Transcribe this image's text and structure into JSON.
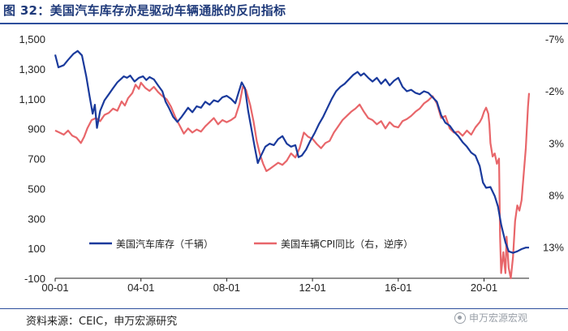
{
  "title": "图 32：美国汽车库存亦是驱动车辆通胀的反向指标",
  "source": "资料来源：CEIC，申万宏源研究",
  "watermark": "申万宏源宏观",
  "colors": {
    "inventory": "#1a3a9c",
    "cpi": "#e8666a",
    "title": "#1f3a7a"
  },
  "chart_data": {
    "type": "line",
    "title": "",
    "x_tick_labels": [
      "00-01",
      "04-01",
      "08-01",
      "12-01",
      "16-01",
      "20-01"
    ],
    "x_ticks": [
      2000.0,
      2004.0,
      2008.0,
      2012.0,
      2016.0,
      2020.0
    ],
    "xlim": [
      2000.0,
      2022.1
    ],
    "y_left": {
      "lim": [
        -100,
        1500
      ],
      "ticks": [
        -100,
        100,
        300,
        500,
        700,
        900,
        1100,
        1300,
        1500
      ],
      "tick_labels": [
        "-100",
        "100",
        "300",
        "500",
        "700",
        "900",
        "1,100",
        "1,300",
        "1,500"
      ]
    },
    "y_right": {
      "lim": [
        -7,
        16
      ],
      "inverted": true,
      "ticks": [
        -7,
        -2,
        3,
        8,
        13
      ],
      "tick_labels": [
        "-7%",
        "-2%",
        "3%",
        "8%",
        "13%"
      ]
    },
    "legend_position": "bottom-left",
    "series": [
      {
        "name": "美国汽车库存（千辆）",
        "axis": "left",
        "points": [
          [
            2000.0,
            1395
          ],
          [
            2000.15,
            1310
          ],
          [
            2000.4,
            1325
          ],
          [
            2000.6,
            1360
          ],
          [
            2000.85,
            1400
          ],
          [
            2001.05,
            1420
          ],
          [
            2001.25,
            1390
          ],
          [
            2001.45,
            1250
          ],
          [
            2001.6,
            1120
          ],
          [
            2001.75,
            1000
          ],
          [
            2001.85,
            1060
          ],
          [
            2001.95,
            905
          ],
          [
            2002.1,
            1020
          ],
          [
            2002.3,
            1090
          ],
          [
            2002.5,
            1130
          ],
          [
            2002.7,
            1170
          ],
          [
            2002.9,
            1210
          ],
          [
            2003.05,
            1230
          ],
          [
            2003.2,
            1250
          ],
          [
            2003.35,
            1240
          ],
          [
            2003.5,
            1255
          ],
          [
            2003.7,
            1215
          ],
          [
            2003.9,
            1240
          ],
          [
            2004.1,
            1250
          ],
          [
            2004.25,
            1225
          ],
          [
            2004.4,
            1245
          ],
          [
            2004.6,
            1230
          ],
          [
            2004.8,
            1190
          ],
          [
            2005.0,
            1150
          ],
          [
            2005.15,
            1080
          ],
          [
            2005.3,
            1040
          ],
          [
            2005.5,
            980
          ],
          [
            2005.7,
            945
          ],
          [
            2005.9,
            980
          ],
          [
            2006.05,
            1010
          ],
          [
            2006.2,
            1040
          ],
          [
            2006.4,
            1010
          ],
          [
            2006.6,
            1050
          ],
          [
            2006.8,
            1040
          ],
          [
            2007.0,
            1080
          ],
          [
            2007.2,
            1060
          ],
          [
            2007.4,
            1090
          ],
          [
            2007.6,
            1080
          ],
          [
            2007.8,
            1110
          ],
          [
            2008.0,
            1120
          ],
          [
            2008.2,
            1100
          ],
          [
            2008.4,
            1070
          ],
          [
            2008.55,
            1140
          ],
          [
            2008.7,
            1210
          ],
          [
            2008.85,
            1170
          ],
          [
            2009.0,
            1020
          ],
          [
            2009.15,
            900
          ],
          [
            2009.3,
            780
          ],
          [
            2009.45,
            670
          ],
          [
            2009.6,
            720
          ],
          [
            2009.8,
            780
          ],
          [
            2010.0,
            800
          ],
          [
            2010.2,
            790
          ],
          [
            2010.4,
            830
          ],
          [
            2010.6,
            850
          ],
          [
            2010.8,
            800
          ],
          [
            2011.0,
            780
          ],
          [
            2011.2,
            790
          ],
          [
            2011.35,
            710
          ],
          [
            2011.5,
            720
          ],
          [
            2011.7,
            760
          ],
          [
            2011.9,
            820
          ],
          [
            2012.1,
            870
          ],
          [
            2012.3,
            930
          ],
          [
            2012.5,
            980
          ],
          [
            2012.7,
            1040
          ],
          [
            2012.9,
            1100
          ],
          [
            2013.1,
            1150
          ],
          [
            2013.3,
            1180
          ],
          [
            2013.5,
            1200
          ],
          [
            2013.7,
            1230
          ],
          [
            2013.9,
            1260
          ],
          [
            2014.1,
            1280
          ],
          [
            2014.25,
            1255
          ],
          [
            2014.4,
            1270
          ],
          [
            2014.6,
            1240
          ],
          [
            2014.8,
            1215
          ],
          [
            2015.0,
            1240
          ],
          [
            2015.2,
            1200
          ],
          [
            2015.4,
            1230
          ],
          [
            2015.6,
            1190
          ],
          [
            2015.8,
            1220
          ],
          [
            2016.0,
            1240
          ],
          [
            2016.2,
            1180
          ],
          [
            2016.4,
            1150
          ],
          [
            2016.6,
            1160
          ],
          [
            2016.8,
            1140
          ],
          [
            2017.0,
            1130
          ],
          [
            2017.2,
            1150
          ],
          [
            2017.4,
            1140
          ],
          [
            2017.6,
            1110
          ],
          [
            2017.8,
            1080
          ],
          [
            2018.0,
            990
          ],
          [
            2018.2,
            940
          ],
          [
            2018.4,
            920
          ],
          [
            2018.6,
            880
          ],
          [
            2018.8,
            850
          ],
          [
            2019.0,
            810
          ],
          [
            2019.2,
            780
          ],
          [
            2019.4,
            740
          ],
          [
            2019.6,
            720
          ],
          [
            2019.8,
            650
          ],
          [
            2019.95,
            540
          ],
          [
            2020.1,
            505
          ],
          [
            2020.3,
            510
          ],
          [
            2020.5,
            450
          ],
          [
            2020.65,
            380
          ],
          [
            2020.8,
            260
          ],
          [
            2021.0,
            140
          ],
          [
            2021.15,
            80
          ],
          [
            2021.35,
            70
          ],
          [
            2021.55,
            80
          ],
          [
            2021.75,
            95
          ],
          [
            2021.95,
            105
          ],
          [
            2022.1,
            105
          ]
        ]
      },
      {
        "name": "美国车辆CPI同比（右，逆序）",
        "axis": "right",
        "points": [
          [
            2000.0,
            1.8
          ],
          [
            2000.2,
            2.0
          ],
          [
            2000.4,
            2.2
          ],
          [
            2000.6,
            1.8
          ],
          [
            2000.8,
            2.3
          ],
          [
            2001.0,
            2.5
          ],
          [
            2001.2,
            3.0
          ],
          [
            2001.35,
            2.4
          ],
          [
            2001.5,
            1.6
          ],
          [
            2001.7,
            0.8
          ],
          [
            2001.9,
            0.6
          ],
          [
            2002.1,
            0.9
          ],
          [
            2002.3,
            0.3
          ],
          [
            2002.5,
            0.1
          ],
          [
            2002.7,
            -0.3
          ],
          [
            2002.9,
            -0.1
          ],
          [
            2003.1,
            -1.0
          ],
          [
            2003.25,
            -0.6
          ],
          [
            2003.4,
            -1.3
          ],
          [
            2003.6,
            -1.8
          ],
          [
            2003.75,
            -2.6
          ],
          [
            2003.9,
            -2.2
          ],
          [
            2004.0,
            -2.8
          ],
          [
            2004.2,
            -2.3
          ],
          [
            2004.4,
            -2.0
          ],
          [
            2004.6,
            -2.4
          ],
          [
            2004.8,
            -1.9
          ],
          [
            2005.0,
            -1.5
          ],
          [
            2005.2,
            -1.2
          ],
          [
            2005.4,
            -0.5
          ],
          [
            2005.6,
            0.5
          ],
          [
            2005.8,
            1.3
          ],
          [
            2006.0,
            2.1
          ],
          [
            2006.2,
            1.6
          ],
          [
            2006.4,
            2.0
          ],
          [
            2006.6,
            1.7
          ],
          [
            2006.8,
            1.9
          ],
          [
            2007.0,
            1.4
          ],
          [
            2007.2,
            1.0
          ],
          [
            2007.4,
            0.6
          ],
          [
            2007.6,
            1.2
          ],
          [
            2007.8,
            0.8
          ],
          [
            2008.0,
            1.0
          ],
          [
            2008.2,
            0.8
          ],
          [
            2008.4,
            0.5
          ],
          [
            2008.6,
            -0.8
          ],
          [
            2008.75,
            -2.4
          ],
          [
            2008.9,
            -2.1
          ],
          [
            2009.1,
            -0.6
          ],
          [
            2009.25,
            0.9
          ],
          [
            2009.4,
            2.8
          ],
          [
            2009.55,
            4.1
          ],
          [
            2009.7,
            5.0
          ],
          [
            2009.85,
            5.7
          ],
          [
            2010.0,
            5.5
          ],
          [
            2010.2,
            5.2
          ],
          [
            2010.4,
            4.9
          ],
          [
            2010.6,
            5.1
          ],
          [
            2010.8,
            4.7
          ],
          [
            2011.0,
            4.0
          ],
          [
            2011.2,
            4.4
          ],
          [
            2011.4,
            3.5
          ],
          [
            2011.6,
            2.0
          ],
          [
            2011.8,
            2.4
          ],
          [
            2012.0,
            2.6
          ],
          [
            2012.2,
            3.1
          ],
          [
            2012.4,
            3.5
          ],
          [
            2012.6,
            3.0
          ],
          [
            2012.8,
            2.8
          ],
          [
            2013.0,
            2.0
          ],
          [
            2013.2,
            1.4
          ],
          [
            2013.4,
            0.8
          ],
          [
            2013.6,
            0.4
          ],
          [
            2013.8,
            0.0
          ],
          [
            2014.0,
            -0.3
          ],
          [
            2014.2,
            -0.7
          ],
          [
            2014.4,
            0.0
          ],
          [
            2014.6,
            0.6
          ],
          [
            2014.8,
            0.8
          ],
          [
            2015.0,
            1.2
          ],
          [
            2015.2,
            0.9
          ],
          [
            2015.4,
            1.6
          ],
          [
            2015.6,
            1.0
          ],
          [
            2015.8,
            1.4
          ],
          [
            2016.0,
            1.5
          ],
          [
            2016.2,
            0.9
          ],
          [
            2016.4,
            0.7
          ],
          [
            2016.6,
            0.4
          ],
          [
            2016.8,
            0.0
          ],
          [
            2017.0,
            -0.3
          ],
          [
            2017.2,
            -0.8
          ],
          [
            2017.4,
            -1.1
          ],
          [
            2017.6,
            -1.5
          ],
          [
            2017.8,
            -0.8
          ],
          [
            2018.0,
            0.6
          ],
          [
            2018.2,
            0.4
          ],
          [
            2018.4,
            1.6
          ],
          [
            2018.6,
            2.0
          ],
          [
            2018.8,
            1.9
          ],
          [
            2019.0,
            2.3
          ],
          [
            2019.2,
            1.8
          ],
          [
            2019.4,
            2.2
          ],
          [
            2019.6,
            1.5
          ],
          [
            2019.8,
            1.0
          ],
          [
            2019.9,
            0.6
          ],
          [
            2020.0,
            0.0
          ],
          [
            2020.1,
            -0.4
          ],
          [
            2020.2,
            0.2
          ],
          [
            2020.25,
            1.2
          ],
          [
            2020.3,
            3.0
          ],
          [
            2020.4,
            4.3
          ],
          [
            2020.5,
            4.0
          ],
          [
            2020.6,
            5.0
          ],
          [
            2020.7,
            4.5
          ],
          [
            2020.75,
            12.0
          ],
          [
            2020.8,
            15.5
          ],
          [
            2020.9,
            13.5
          ],
          [
            2021.0,
            15.5
          ],
          [
            2021.05,
            12.0
          ],
          [
            2021.15,
            15.0
          ],
          [
            2021.25,
            16.0
          ],
          [
            2021.35,
            14.0
          ],
          [
            2021.45,
            10.5
          ],
          [
            2021.55,
            9.0
          ],
          [
            2021.65,
            9.5
          ],
          [
            2021.75,
            8.5
          ],
          [
            2021.85,
            6.0
          ],
          [
            2021.95,
            3.5
          ],
          [
            2022.05,
            -0.5
          ],
          [
            2022.1,
            -1.8
          ]
        ]
      }
    ]
  }
}
